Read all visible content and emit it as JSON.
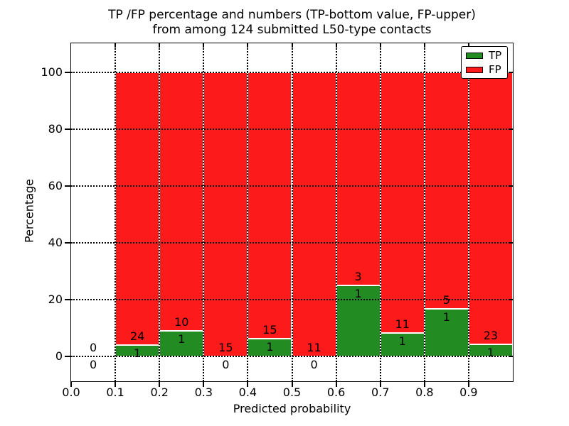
{
  "title": {
    "line1": "TP /FP percentage and numbers (TP-bottom value, FP-upper)",
    "line2": "from among 124 submitted L50-type contacts"
  },
  "axes": {
    "x_label": "Predicted probability",
    "y_label": "Percentage",
    "x_tick_labels": [
      "0.0",
      "0.1",
      "0.2",
      "0.3",
      "0.4",
      "0.5",
      "0.6",
      "0.7",
      "0.8",
      "0.9"
    ],
    "y_tick_labels": [
      "0",
      "20",
      "40",
      "60",
      "80",
      "100"
    ],
    "y_tick_values": [
      0,
      20,
      40,
      60,
      80,
      100
    ],
    "x_tick_values": [
      0.0,
      0.1,
      0.2,
      0.3,
      0.4,
      0.5,
      0.6,
      0.7,
      0.8,
      0.9
    ],
    "x_range": [
      0.0,
      1.0
    ],
    "y_display_range": [
      -8.7,
      110.2
    ]
  },
  "legend": {
    "items": [
      {
        "label": "TP",
        "color": "#228c22"
      },
      {
        "label": "FP",
        "color": "#fd1a1a"
      }
    ]
  },
  "colors": {
    "tp": "#228c22",
    "fp": "#fd1a1a",
    "grid": "#000000",
    "bar_edge": "#ffffff"
  },
  "chart_data": {
    "type": "bar",
    "stacked": true,
    "title": "TP /FP percentage and numbers (TP-bottom value, FP-upper) from among 124 submitted L50-type contacts",
    "xlabel": "Predicted probability",
    "ylabel": "Percentage",
    "total_contacts": 124,
    "grid": true,
    "legend_position": "upper right",
    "ylim": [
      0,
      100
    ],
    "bin_edges": [
      0.0,
      0.1,
      0.2,
      0.3,
      0.4,
      0.5,
      0.6,
      0.7,
      0.8,
      0.9,
      1.0
    ],
    "series": [
      {
        "name": "TP",
        "counts": [
          0,
          1,
          1,
          0,
          1,
          0,
          1,
          1,
          1,
          1
        ],
        "percentages": [
          0,
          4.0,
          9.09,
          0,
          6.25,
          0,
          25.0,
          8.33,
          16.67,
          4.17
        ]
      },
      {
        "name": "FP",
        "counts": [
          0,
          24,
          10,
          15,
          15,
          11,
          3,
          11,
          5,
          23
        ],
        "percentages": [
          0,
          96.0,
          90.91,
          100,
          93.75,
          100,
          75.0,
          91.67,
          83.33,
          95.83
        ]
      }
    ]
  }
}
